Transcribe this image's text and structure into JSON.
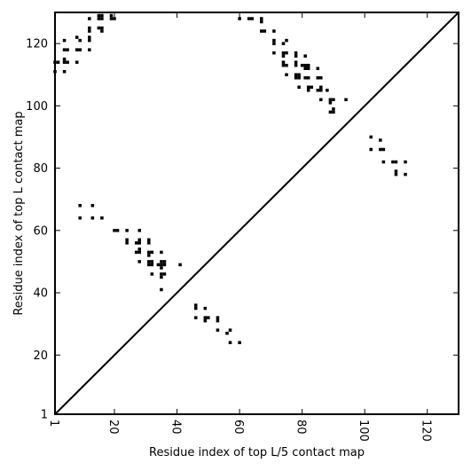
{
  "chart_data": {
    "type": "scatter",
    "title": "",
    "xlabel": "Residue index of top L/5 contact map",
    "ylabel": "Residue index of top L contact map",
    "xlim": [
      1,
      130
    ],
    "ylim": [
      1,
      130
    ],
    "x_ticks": [
      1,
      20,
      40,
      60,
      80,
      100,
      120
    ],
    "y_ticks": [
      1,
      20,
      40,
      60,
      80,
      100,
      120
    ],
    "x_tick_labels": [
      "1",
      "20",
      "40",
      "60",
      "80",
      "100",
      "120"
    ],
    "y_tick_labels": [
      "1",
      "20",
      "40",
      "60",
      "80",
      "100",
      "120"
    ],
    "grid": false,
    "diagonal": true,
    "marker_color": "#000000",
    "series": [
      {
        "region": "upper-left",
        "points": [
          [
            1,
            114
          ],
          [
            1,
            111
          ],
          [
            2,
            114
          ],
          [
            4,
            121
          ],
          [
            4,
            118
          ],
          [
            4,
            115
          ],
          [
            4,
            114
          ],
          [
            4,
            111
          ],
          [
            5,
            118
          ],
          [
            5,
            114
          ],
          [
            8,
            122
          ],
          [
            8,
            118
          ],
          [
            8,
            114
          ],
          [
            9,
            121
          ],
          [
            9,
            118
          ],
          [
            12,
            128
          ],
          [
            12,
            125
          ],
          [
            12,
            124
          ],
          [
            12,
            122
          ],
          [
            12,
            121
          ],
          [
            12,
            118
          ],
          [
            15,
            129
          ],
          [
            15,
            128
          ],
          [
            15,
            125
          ],
          [
            16,
            129
          ],
          [
            16,
            128
          ],
          [
            16,
            125
          ],
          [
            16,
            124
          ],
          [
            19,
            129
          ],
          [
            19,
            128
          ],
          [
            20,
            128
          ],
          [
            60,
            128
          ],
          [
            63,
            128
          ],
          [
            64,
            128
          ],
          [
            67,
            128
          ],
          [
            67,
            127
          ],
          [
            67,
            124
          ],
          [
            68,
            124
          ],
          [
            71,
            124
          ],
          [
            71,
            121
          ],
          [
            71,
            120
          ],
          [
            71,
            117
          ],
          [
            74,
            120
          ],
          [
            74,
            117
          ],
          [
            74,
            116
          ],
          [
            74,
            114
          ],
          [
            74,
            113
          ],
          [
            75,
            121
          ],
          [
            75,
            117
          ],
          [
            75,
            113
          ],
          [
            75,
            110
          ],
          [
            78,
            117
          ],
          [
            78,
            116
          ],
          [
            78,
            114
          ],
          [
            78,
            113
          ],
          [
            78,
            110
          ],
          [
            78,
            109
          ],
          [
            79,
            110
          ],
          [
            79,
            109
          ],
          [
            79,
            106
          ],
          [
            80,
            113
          ],
          [
            81,
            116
          ],
          [
            81,
            113
          ],
          [
            81,
            112
          ],
          [
            81,
            109
          ],
          [
            82,
            113
          ],
          [
            82,
            112
          ],
          [
            82,
            109
          ],
          [
            82,
            106
          ],
          [
            82,
            105
          ],
          [
            83,
            106
          ],
          [
            85,
            112
          ],
          [
            85,
            109
          ],
          [
            85,
            105
          ],
          [
            86,
            109
          ],
          [
            86,
            106
          ],
          [
            86,
            105
          ],
          [
            86,
            102
          ],
          [
            88,
            105
          ],
          [
            89,
            102
          ],
          [
            89,
            101
          ],
          [
            89,
            98
          ],
          [
            90,
            102
          ],
          [
            90,
            99
          ],
          [
            90,
            98
          ],
          [
            94,
            102
          ]
        ]
      },
      {
        "region": "lower-right",
        "points": [
          [
            9,
            68
          ],
          [
            9,
            64
          ],
          [
            13,
            68
          ],
          [
            13,
            64
          ],
          [
            16,
            64
          ],
          [
            20,
            60
          ],
          [
            21,
            60
          ],
          [
            24,
            60
          ],
          [
            24,
            57
          ],
          [
            24,
            56
          ],
          [
            27,
            56
          ],
          [
            27,
            53
          ],
          [
            28,
            60
          ],
          [
            28,
            57
          ],
          [
            28,
            56
          ],
          [
            28,
            54
          ],
          [
            28,
            53
          ],
          [
            28,
            50
          ],
          [
            31,
            57
          ],
          [
            31,
            56
          ],
          [
            31,
            53
          ],
          [
            31,
            52
          ],
          [
            31,
            50
          ],
          [
            31,
            49
          ],
          [
            32,
            53
          ],
          [
            32,
            50
          ],
          [
            32,
            49
          ],
          [
            32,
            46
          ],
          [
            34,
            49
          ],
          [
            35,
            53
          ],
          [
            35,
            50
          ],
          [
            35,
            49
          ],
          [
            35,
            48
          ],
          [
            35,
            46
          ],
          [
            35,
            45
          ],
          [
            35,
            41
          ],
          [
            36,
            50
          ],
          [
            36,
            49
          ],
          [
            36,
            46
          ],
          [
            41,
            49
          ],
          [
            46,
            36
          ],
          [
            46,
            35
          ],
          [
            46,
            32
          ],
          [
            49,
            35
          ],
          [
            49,
            32
          ],
          [
            49,
            31
          ],
          [
            50,
            32
          ],
          [
            53,
            32
          ],
          [
            53,
            31
          ],
          [
            53,
            28
          ],
          [
            56,
            27
          ],
          [
            57,
            28
          ],
          [
            57,
            24
          ],
          [
            60,
            24
          ],
          [
            102,
            90
          ],
          [
            102,
            86
          ],
          [
            105,
            89
          ],
          [
            105,
            86
          ],
          [
            106,
            86
          ],
          [
            106,
            82
          ],
          [
            109,
            82
          ],
          [
            110,
            82
          ],
          [
            110,
            79
          ],
          [
            110,
            78
          ],
          [
            113,
            82
          ],
          [
            113,
            78
          ]
        ]
      }
    ]
  }
}
